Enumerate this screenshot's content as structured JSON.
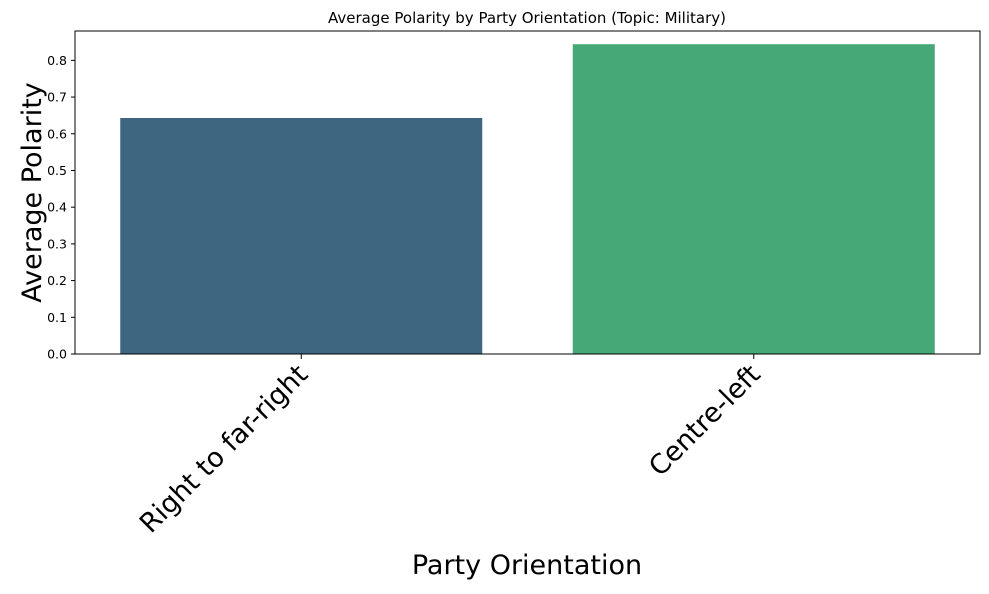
{
  "chart_data": {
    "type": "bar",
    "title": "Average Polarity by Party Orientation (Topic: Military)",
    "xlabel": "Party Orientation",
    "ylabel": "Average Polarity",
    "categories": [
      "Right to far-right",
      "Centre-left"
    ],
    "values": [
      0.643,
      0.844
    ],
    "colors": [
      "#3e6680",
      "#46a877"
    ],
    "ylim": [
      0,
      0.88
    ],
    "yticks": [
      0.0,
      0.1,
      0.2,
      0.3,
      0.4,
      0.5,
      0.6,
      0.7,
      0.8
    ],
    "ytick_labels": [
      "0.0",
      "0.1",
      "0.2",
      "0.3",
      "0.4",
      "0.5",
      "0.6",
      "0.7",
      "0.8"
    ],
    "grid": false,
    "legend": "none",
    "xtick_rotation_deg": 45
  }
}
